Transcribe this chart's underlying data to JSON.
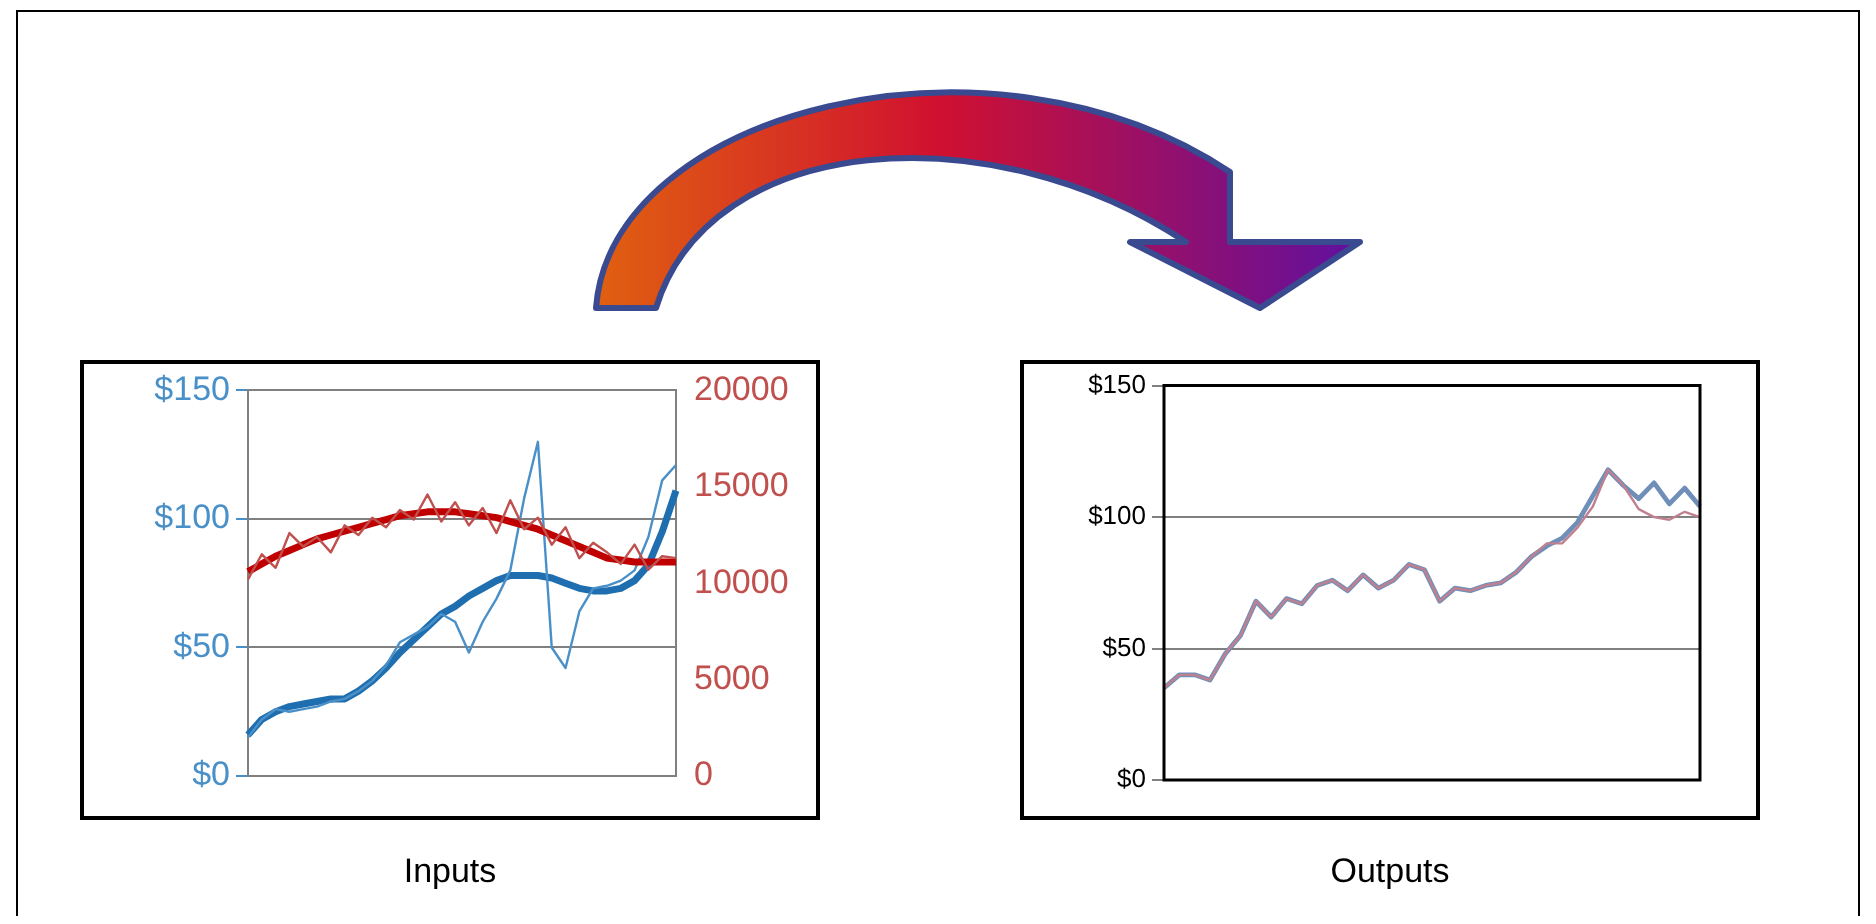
{
  "chart_data": [
    {
      "type": "line",
      "title": "Inputs",
      "marker": "none",
      "grid": "y",
      "legend": false,
      "categories": [
        null,
        null,
        null,
        null,
        null,
        null,
        null,
        null,
        null,
        null,
        null,
        null,
        null,
        null,
        null,
        null,
        null,
        null,
        null,
        null,
        null,
        null,
        null,
        null,
        null,
        null,
        null,
        null,
        null,
        null,
        null,
        null
      ],
      "ylim": [
        0,
        150
      ],
      "yticks": [
        {
          "value": 0,
          "label": "$0"
        },
        {
          "value": 50,
          "label": "$50"
        },
        {
          "value": 100,
          "label": "$100"
        },
        {
          "value": 150,
          "label": "$150"
        }
      ],
      "y2lim": [
        0,
        20000
      ],
      "y2ticks": [
        0,
        5000,
        10000,
        15000,
        20000
      ],
      "series": [
        {
          "color": "#c0504d",
          "axis": "y2",
          "values": [
            10200,
            11500,
            10800,
            12600,
            11900,
            12400,
            11600,
            13000,
            12500,
            13400,
            12900,
            13800,
            13300,
            14600,
            13200,
            14200,
            13000,
            13900,
            12600,
            14300,
            12800,
            13400,
            12000,
            12900,
            11300,
            12100,
            11600,
            11000,
            12000,
            10700,
            11400,
            11300
          ]
        },
        {
          "color": "#c00000",
          "axis": "y2",
          "type": "line",
          "values": [
            10600,
            11000,
            11400,
            11700,
            12000,
            12300,
            12500,
            12700,
            12900,
            13100,
            13300,
            13500,
            13600,
            13700,
            13700,
            13700,
            13600,
            13500,
            13400,
            13200,
            13000,
            12800,
            12500,
            12200,
            11900,
            11600,
            11300,
            11200,
            11100,
            11100,
            11100,
            11100
          ]
        },
        {
          "color": "#4a90c8",
          "axis": "y",
          "values": [
            15,
            22,
            26,
            25,
            26,
            27,
            29,
            30,
            33,
            37,
            43,
            52,
            55,
            58,
            63,
            60,
            48,
            60,
            69,
            80,
            108,
            130,
            50,
            42,
            64,
            73,
            74,
            76,
            80,
            93,
            115,
            121
          ]
        },
        {
          "color": "#1f6fb0",
          "axis": "y",
          "type": "line",
          "values": [
            16,
            22,
            25,
            27,
            28,
            29,
            30,
            30,
            33,
            37,
            42,
            48,
            53,
            58,
            63,
            66,
            70,
            73,
            76,
            78,
            78,
            78,
            77,
            75,
            73,
            72,
            72,
            73,
            76,
            82,
            95,
            111
          ]
        }
      ]
    },
    {
      "type": "line",
      "title": "Outputs",
      "marker": "none",
      "grid": "y",
      "legend": false,
      "categories": [
        null,
        null,
        null,
        null,
        null,
        null,
        null,
        null,
        null,
        null,
        null,
        null,
        null,
        null,
        null,
        null,
        null,
        null,
        null,
        null,
        null,
        null,
        null,
        null,
        null,
        null,
        null,
        null,
        null,
        null,
        null,
        null,
        null,
        null,
        null,
        null
      ],
      "ylim": [
        0,
        150
      ],
      "yticks": [
        {
          "value": 0,
          "label": "$0"
        },
        {
          "value": 50,
          "label": "$50"
        },
        {
          "value": 100,
          "label": "$100"
        },
        {
          "value": 150,
          "label": "$150"
        }
      ],
      "series": [
        {
          "color": "#c08090",
          "axis": "y",
          "values": [
            35,
            40,
            40,
            38,
            48,
            55,
            68,
            62,
            69,
            67,
            74,
            76,
            72,
            78,
            73,
            76,
            82,
            80,
            68,
            73,
            72,
            74,
            75,
            79,
            85,
            90,
            90,
            96,
            104,
            118,
            112,
            103,
            100,
            99,
            102,
            100
          ]
        },
        {
          "color": "#6f8fb8",
          "axis": "y",
          "values": [
            35,
            40,
            40,
            38,
            48,
            55,
            68,
            62,
            69,
            67,
            74,
            76,
            72,
            78,
            73,
            76,
            82,
            80,
            68,
            73,
            72,
            74,
            75,
            79,
            85,
            89,
            92,
            98,
            108,
            118,
            112,
            107,
            113,
            105,
            111,
            104
          ]
        }
      ]
    }
  ]
}
